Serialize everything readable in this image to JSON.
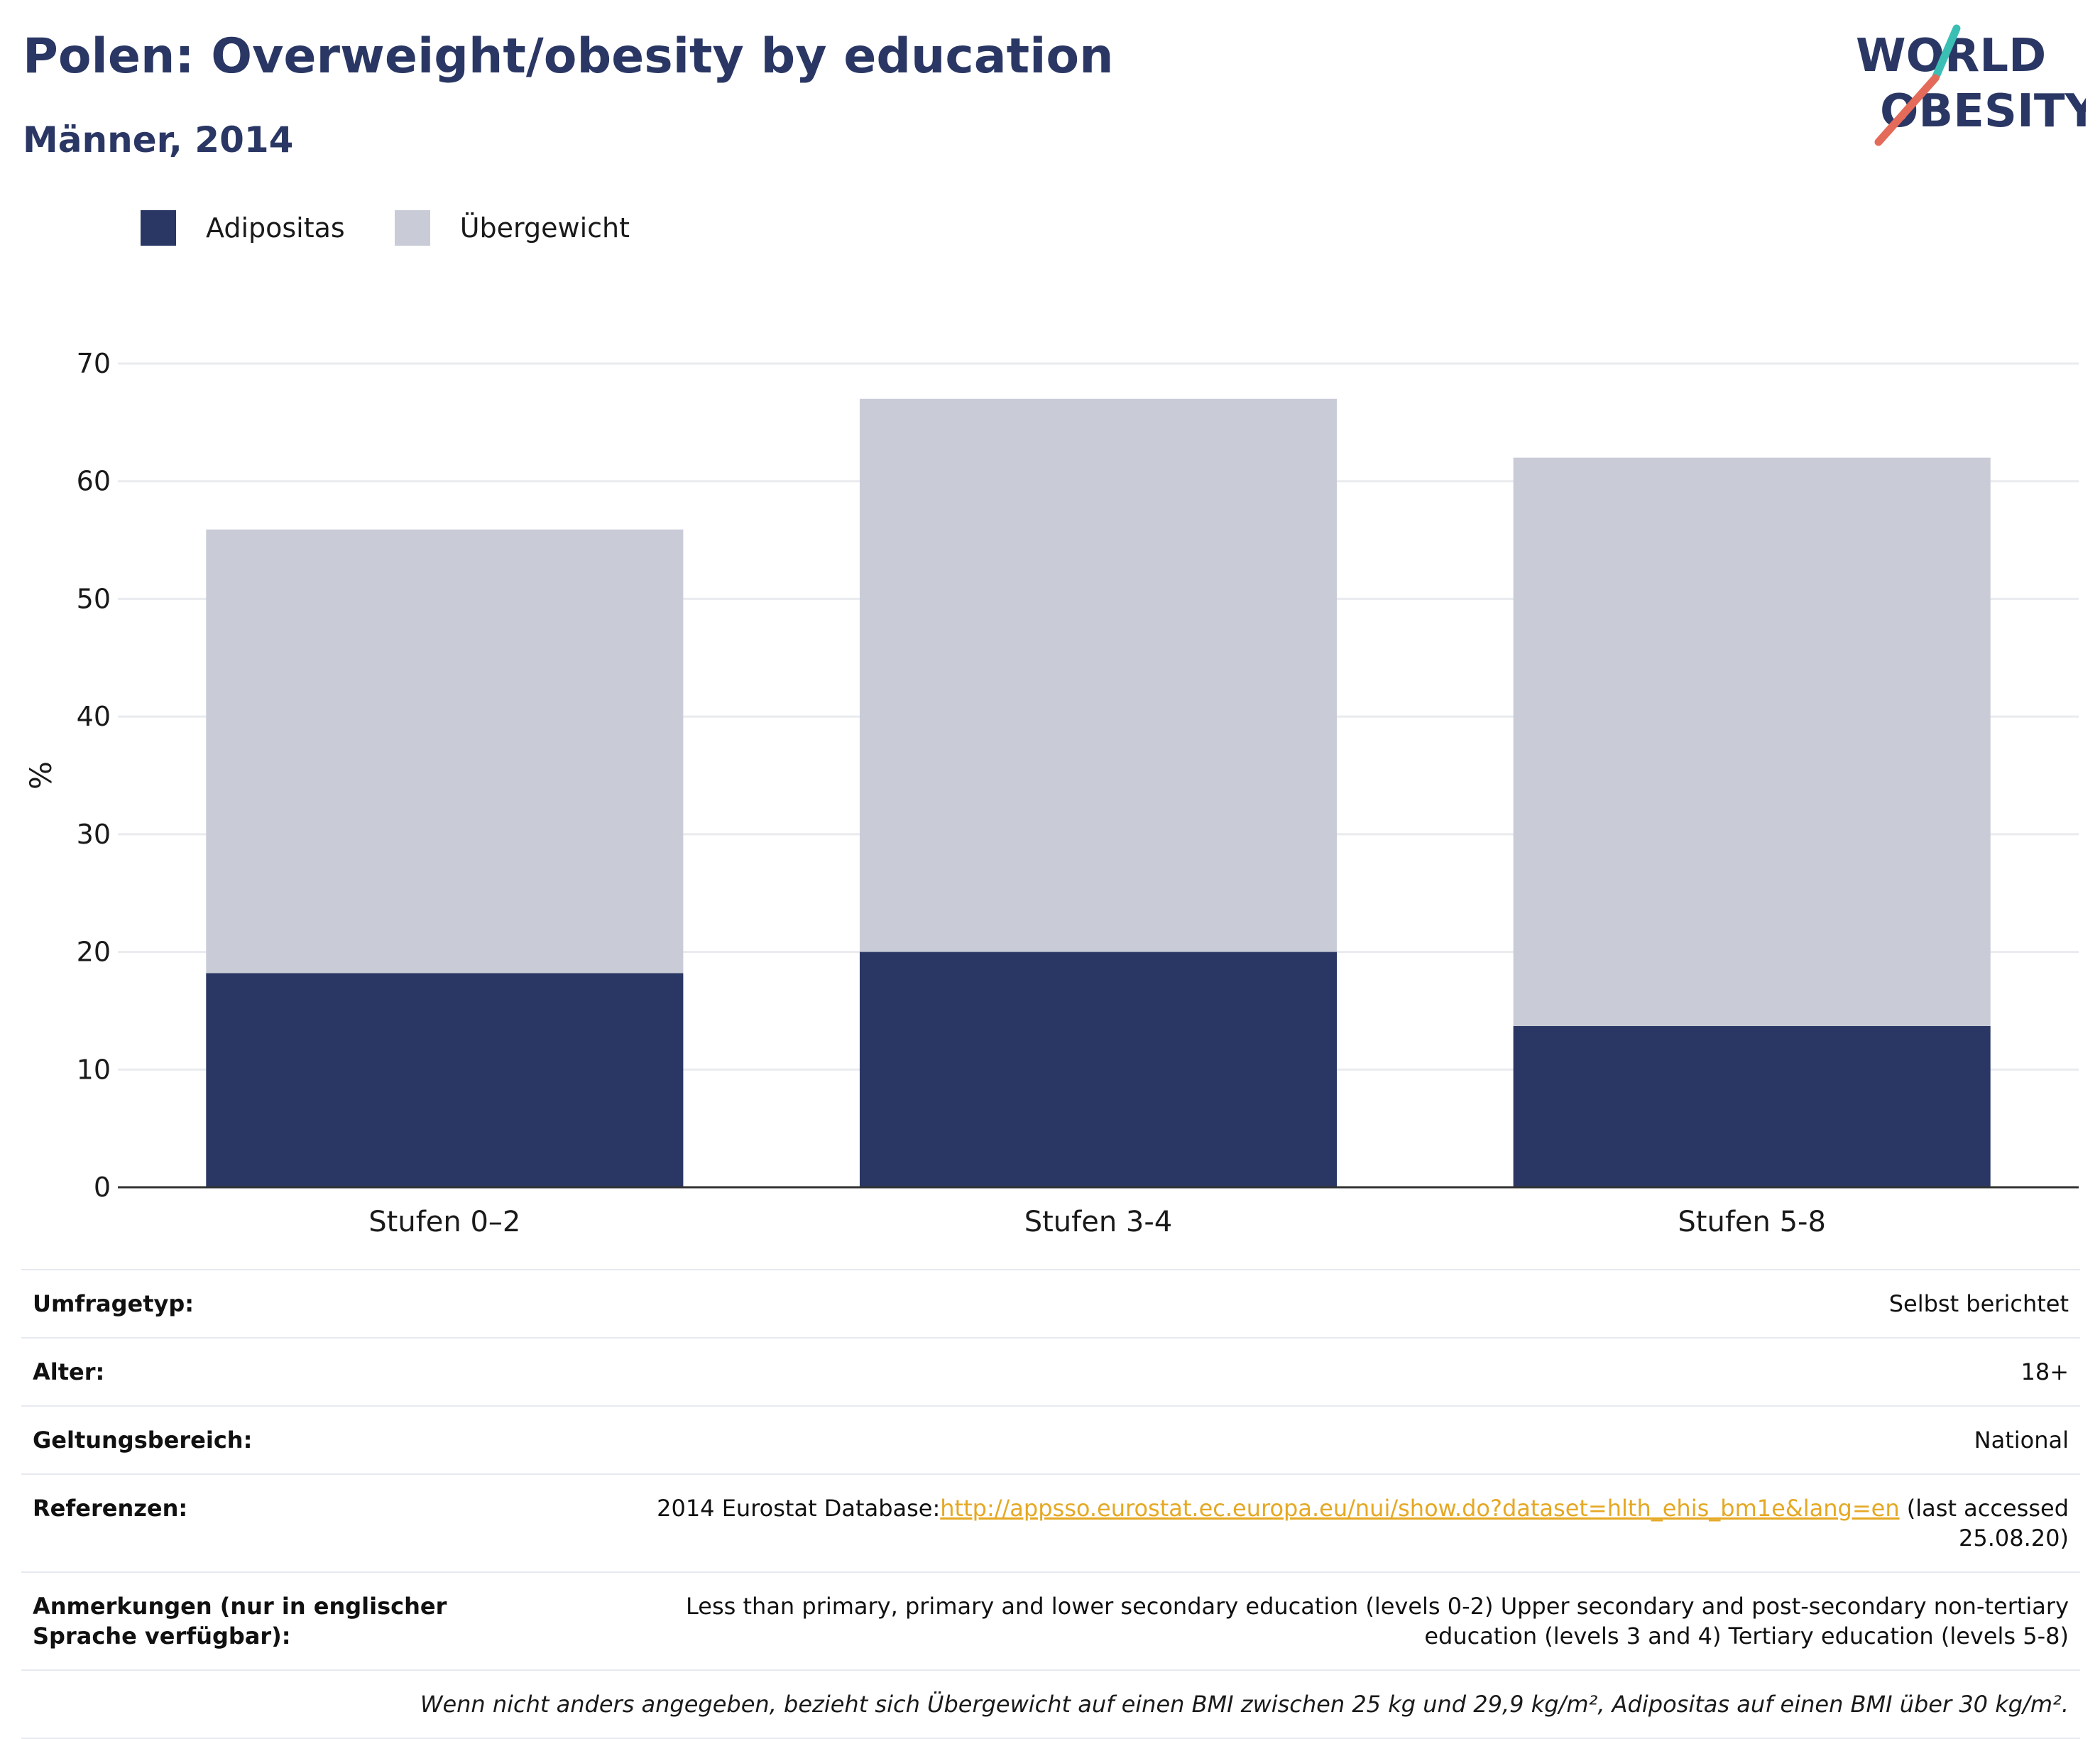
{
  "header": {
    "title": "Polen: Overweight/obesity by education",
    "subtitle": "Männer, 2014"
  },
  "logo": {
    "line1": "WORLD",
    "line2": "OBESITY",
    "icon": "world-obesity-logo"
  },
  "colors": {
    "obesity": "#2a3764",
    "overweight": "#c9ccd7",
    "title": "#2a3764",
    "link": "#e5a823"
  },
  "chart_data": {
    "type": "bar",
    "stacked": true,
    "categories": [
      "Stufen 0–2",
      "Stufen 3-4",
      "Stufen 5-8"
    ],
    "series": [
      {
        "name": "Adipositas",
        "values": [
          18.2,
          20.0,
          13.7
        ],
        "color": "#2a3764"
      },
      {
        "name": "Übergewicht",
        "values": [
          37.7,
          47.0,
          48.3
        ],
        "color": "#c9ccd7"
      }
    ],
    "ylabel": "%",
    "ylim": [
      0,
      70
    ],
    "yticks": [
      0,
      10,
      20,
      30,
      40,
      50,
      60,
      70
    ],
    "grid": true,
    "legend_position": "top-left"
  },
  "info": {
    "survey": {
      "label": "Umfragetyp:",
      "value": "Selbst berichtet"
    },
    "age": {
      "label": "Alter:",
      "value": "18+"
    },
    "scope": {
      "label": "Geltungsbereich:",
      "value": "National"
    },
    "refs": {
      "label": "Referenzen:",
      "prefix": "2014 Eurostat Database:",
      "link": "http://appsso.eurostat.ec.europa.eu/nui/show.do?dataset=hlth_ehis_bm1e&lang=en",
      "suffix": " (last accessed 25.08.20)"
    },
    "notes": {
      "label": "Anmerkungen (nur in englischer Sprache verfügbar):",
      "value": "Less than primary, primary and lower secondary education (levels 0-2) Upper secondary and post-secondary non-tertiary education (levels 3 and 4) Tertiary education (levels 5-8)"
    },
    "footnote": "Wenn nicht anders angegeben, bezieht sich Übergewicht auf einen BMI zwischen 25 kg und 29,9 kg/m², Adipositas auf einen BMI über 30 kg/m²."
  }
}
